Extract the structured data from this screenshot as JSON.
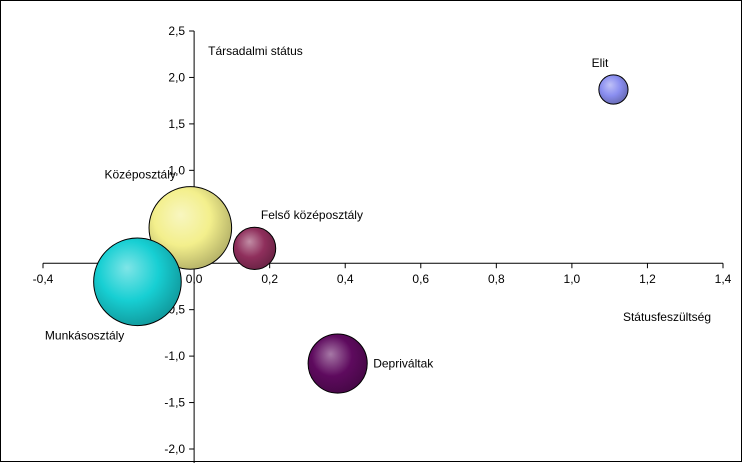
{
  "chart_data": {
    "type": "bubble",
    "xlabel": "Státusfeszültség",
    "ylabel": "Társadalmi státus",
    "xlim": [
      -0.4,
      1.4
    ],
    "ylim": [
      -2.0,
      2.5
    ],
    "x_ticks": [
      -0.4,
      -0.2,
      0.0,
      0.2,
      0.4,
      0.6,
      0.8,
      1.0,
      1.2,
      1.4
    ],
    "x_tick_labels": [
      "-0,4",
      "-0,2",
      "0,0",
      "0,2",
      "0,4",
      "0,6",
      "0,8",
      "1,0",
      "1,2",
      "1,4"
    ],
    "y_ticks": [
      -2.0,
      -1.5,
      -1.0,
      -0.5,
      0.0,
      0.5,
      1.0,
      1.5,
      2.0,
      2.5
    ],
    "y_tick_labels": [
      "-2,0",
      "-1,5",
      "-1,0",
      "-0,5",
      "0,0",
      "0,5",
      "1,0",
      "1,5",
      "2,0",
      "2,5"
    ],
    "grid": false,
    "legend": "none",
    "points": [
      {
        "label": "Elit",
        "x": 1.11,
        "y": 1.87,
        "size": 1.0,
        "color": "#8a8ef0",
        "label_pos": "upper-left"
      },
      {
        "label": "Felső középosztály",
        "x": 0.16,
        "y": 0.16,
        "size": 2.1,
        "color": "#8f2f5c",
        "label_pos": "upper-right"
      },
      {
        "label": "Középosztály",
        "x": -0.01,
        "y": 0.38,
        "size": 8.0,
        "color": "#f3ef8c",
        "label_pos": "upper-left"
      },
      {
        "label": "Munkásosztály",
        "x": -0.15,
        "y": -0.2,
        "size": 9.0,
        "color": "#17cfd3",
        "label_pos": "lower-left"
      },
      {
        "label": "Depriváltak",
        "x": 0.38,
        "y": -1.08,
        "size": 4.1,
        "color": "#5e0a5e",
        "label_pos": "right"
      }
    ]
  }
}
